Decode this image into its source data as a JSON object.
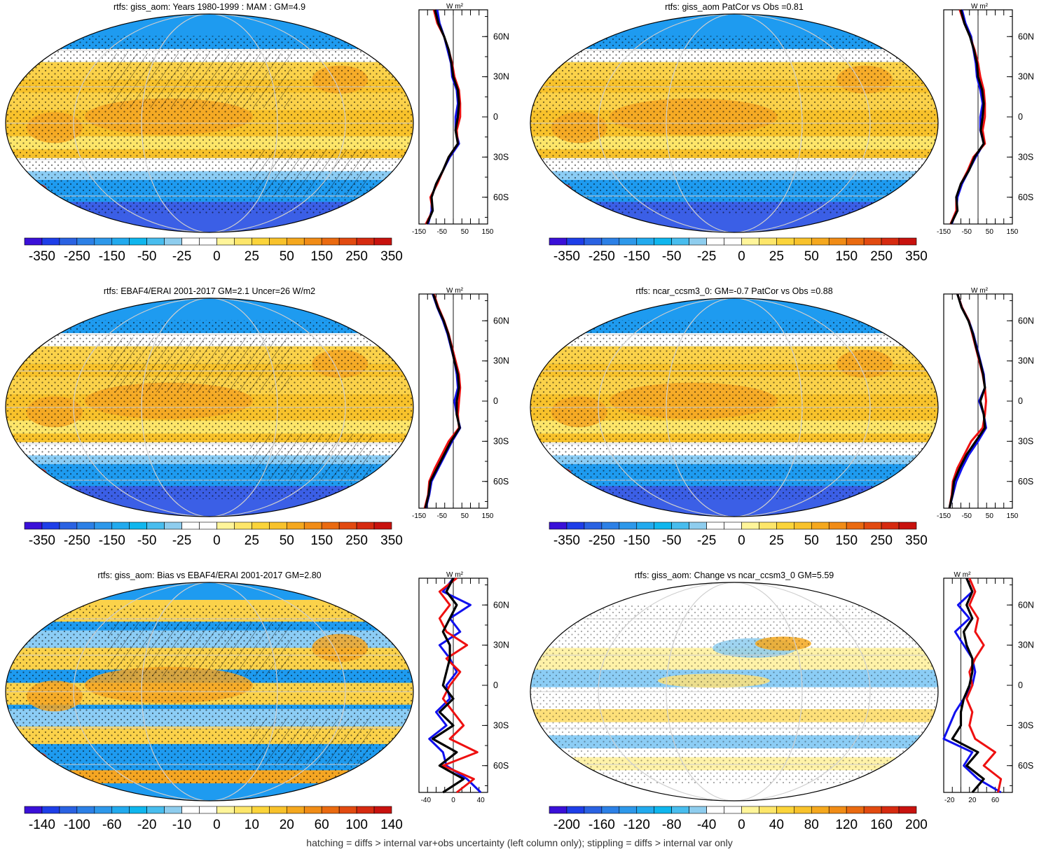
{
  "colors": {
    "bg": "#ffffff",
    "ocean_blue": "#1e9bf0",
    "deep_blue": "#3b5fe6",
    "light_blue": "#8ccdf5",
    "warm_yellow": "#fbd24a",
    "orange": "#f5a623",
    "red": "#e03020",
    "line_blue": "#1010ee",
    "line_red": "#ee1010",
    "line_black": "#000000"
  },
  "colorbar_palette": [
    "#3a10d8",
    "#1e3ee8",
    "#2a62e2",
    "#2c80e6",
    "#2d98ea",
    "#22aaee",
    "#0fb6ee",
    "#48bdee",
    "#8ecdee",
    "#ffffff",
    "#ffffff",
    "#fff59a",
    "#fde66a",
    "#fbd43a",
    "#f8c22b",
    "#f5a81e",
    "#f18c16",
    "#ea6a10",
    "#e24a10",
    "#d62a10",
    "#c8120e"
  ],
  "footer_text": "hatching = diffs > internal var+obs uncertainty (left column only); stippling = diffs > internal var only",
  "chart_data": [
    {
      "type": "heatmap",
      "title": "rtfs: giss_aom: Years 1980-1999 : MAM : GM=4.9",
      "colorbar_ticks": [
        "-350",
        "-250",
        "-150",
        "-50",
        "-25",
        "0",
        "25",
        "50",
        "150",
        "250",
        "350"
      ],
      "zonal_profile": {
        "unit": "W m²",
        "x_ticks": [
          "-150",
          "-50",
          "50",
          "150"
        ],
        "xlim": [
          -150,
          150
        ],
        "y_ticks": [
          "60N",
          "30N",
          "0",
          "30S",
          "60S"
        ],
        "lat": [
          80,
          70,
          60,
          50,
          40,
          30,
          20,
          10,
          0,
          -10,
          -20,
          -30,
          -40,
          -50,
          -60,
          -70,
          -80
        ],
        "series": [
          {
            "color": "blue",
            "values": [
              -70,
              -60,
              -40,
              -25,
              -10,
              -5,
              15,
              20,
              10,
              10,
              25,
              -15,
              -45,
              -75,
              -95,
              -95,
              -110
            ]
          },
          {
            "color": "red",
            "values": [
              -85,
              -70,
              -40,
              -20,
              -5,
              5,
              25,
              30,
              30,
              15,
              20,
              -20,
              -45,
              -70,
              -100,
              -90,
              -120
            ]
          },
          {
            "color": "black",
            "values": [
              -80,
              -65,
              -40,
              -20,
              -8,
              0,
              20,
              25,
              20,
              10,
              20,
              -20,
              -45,
              -75,
              -95,
              -90,
              -115
            ]
          }
        ]
      }
    },
    {
      "type": "heatmap",
      "title": "rtfs: giss_aom PatCor vs Obs =0.81",
      "colorbar_ticks": [
        "-350",
        "-250",
        "-150",
        "-50",
        "-25",
        "0",
        "25",
        "50",
        "150",
        "250",
        "350"
      ],
      "zonal_profile": {
        "unit": "W m²",
        "x_ticks": [
          "-150",
          "-50",
          "50",
          "150"
        ],
        "xlim": [
          -150,
          150
        ],
        "y_ticks": [
          "60N",
          "30N",
          "0",
          "30S",
          "60S"
        ],
        "lat": [
          80,
          70,
          60,
          50,
          40,
          30,
          20,
          10,
          0,
          -10,
          -20,
          -30,
          -40,
          -50,
          -60,
          -70,
          -80
        ],
        "series": [
          {
            "color": "blue",
            "values": [
              -70,
              -55,
              -30,
              -20,
              -10,
              -5,
              10,
              20,
              10,
              10,
              25,
              -10,
              -40,
              -70,
              -90,
              -95,
              -115
            ]
          },
          {
            "color": "red",
            "values": [
              -80,
              -60,
              -35,
              -15,
              0,
              10,
              25,
              30,
              30,
              20,
              30,
              -20,
              -45,
              -75,
              -95,
              -95,
              -120
            ]
          },
          {
            "color": "black",
            "values": [
              -75,
              -60,
              -35,
              -18,
              -5,
              0,
              18,
              25,
              20,
              12,
              25,
              -15,
              -40,
              -75,
              -95,
              -90,
              -118
            ]
          }
        ]
      }
    },
    {
      "type": "heatmap",
      "title": "rtfs: EBAF4/ERAI 2001-2017 GM=2.1 Uncer=26 W/m2",
      "colorbar_ticks": [
        "-350",
        "-250",
        "-150",
        "-50",
        "-25",
        "0",
        "25",
        "50",
        "150",
        "250",
        "350"
      ],
      "zonal_profile": {
        "unit": "W m²",
        "x_ticks": [
          "-150",
          "-50",
          "50",
          "150"
        ],
        "xlim": [
          -150,
          150
        ],
        "y_ticks": [
          "60N",
          "30N",
          "0",
          "30S",
          "60S"
        ],
        "lat": [
          80,
          70,
          60,
          50,
          40,
          30,
          20,
          10,
          0,
          -10,
          -20,
          -30,
          -40,
          -50,
          -60,
          -70,
          -80
        ],
        "series": [
          {
            "color": "blue",
            "values": [
              -90,
              -70,
              -45,
              -25,
              -10,
              5,
              15,
              20,
              5,
              15,
              30,
              -5,
              -35,
              -65,
              -95,
              -105,
              -120
            ]
          },
          {
            "color": "red",
            "values": [
              -85,
              -65,
              -40,
              -20,
              -5,
              10,
              25,
              30,
              25,
              20,
              25,
              -20,
              -50,
              -80,
              -105,
              -110,
              -125
            ]
          },
          {
            "color": "black",
            "values": [
              -88,
              -68,
              -42,
              -22,
              -8,
              5,
              20,
              25,
              15,
              15,
              28,
              -10,
              -40,
              -70,
              -100,
              -108,
              -122
            ]
          }
        ]
      }
    },
    {
      "type": "heatmap",
      "title": "rtfs: ncar_ccsm3_0: GM=-0.7 PatCor vs Obs =0.88",
      "colorbar_ticks": [
        "-350",
        "-250",
        "-150",
        "-50",
        "-25",
        "0",
        "25",
        "50",
        "150",
        "250",
        "350"
      ],
      "zonal_profile": {
        "unit": "W m²",
        "x_ticks": [
          "-150",
          "-50",
          "50",
          "150"
        ],
        "xlim": [
          -150,
          150
        ],
        "y_ticks": [
          "60N",
          "30N",
          "0",
          "30S",
          "60S"
        ],
        "lat": [
          80,
          70,
          60,
          50,
          40,
          30,
          20,
          10,
          0,
          -10,
          -20,
          -30,
          -40,
          -50,
          -60,
          -70,
          -80
        ],
        "series": [
          {
            "color": "blue",
            "values": [
              -90,
              -70,
              -40,
              -20,
              -5,
              10,
              25,
              30,
              5,
              25,
              35,
              0,
              -40,
              -70,
              -95,
              -110,
              -125
            ]
          },
          {
            "color": "red",
            "values": [
              -90,
              -70,
              -40,
              -25,
              -10,
              5,
              20,
              30,
              35,
              30,
              20,
              -30,
              -60,
              -90,
              -110,
              -115,
              -125
            ]
          },
          {
            "color": "black",
            "values": [
              -90,
              -72,
              -42,
              -22,
              -8,
              8,
              22,
              30,
              10,
              25,
              30,
              -10,
              -50,
              -80,
              -105,
              -112,
              -125
            ]
          }
        ]
      }
    },
    {
      "type": "heatmap",
      "title": "rtfs: giss_aom: Bias vs EBAF4/ERAI 2001-2017 GM=2.80",
      "colorbar_ticks": [
        "-140",
        "-100",
        "-60",
        "-20",
        "-10",
        "0",
        "10",
        "20",
        "60",
        "100",
        "140"
      ],
      "zonal_profile": {
        "unit": "W m²",
        "x_ticks": [
          "-40",
          "0",
          "40"
        ],
        "xlim": [
          -50,
          50
        ],
        "y_ticks": [
          "60N",
          "30N",
          "0",
          "30S",
          "60S"
        ],
        "lat": [
          80,
          70,
          60,
          50,
          40,
          30,
          20,
          10,
          0,
          -10,
          -20,
          -30,
          -40,
          -50,
          -60,
          -70,
          -80
        ],
        "series": [
          {
            "color": "blue",
            "values": [
              0,
              -15,
              25,
              -5,
              10,
              -20,
              -5,
              5,
              -10,
              -5,
              -25,
              -10,
              -35,
              -15,
              -10,
              20,
              40
            ]
          },
          {
            "color": "red",
            "values": [
              5,
              -20,
              -5,
              -20,
              -10,
              20,
              -10,
              10,
              -5,
              -15,
              0,
              15,
              -5,
              35,
              -15,
              30,
              5
            ]
          },
          {
            "color": "black",
            "values": [
              0,
              -10,
              5,
              -5,
              -15,
              -5,
              -5,
              -10,
              -15,
              0,
              -20,
              0,
              -30,
              5,
              -20,
              15,
              -15
            ]
          }
        ]
      }
    },
    {
      "type": "heatmap",
      "title": "rtfs: giss_aom: Change vs ncar_ccsm3_0 GM=5.59",
      "colorbar_ticks": [
        "-200",
        "-160",
        "-120",
        "-80",
        "-40",
        "0",
        "40",
        "80",
        "120",
        "160",
        "200"
      ],
      "zonal_profile": {
        "unit": "W m²",
        "x_ticks": [
          "-20",
          "20",
          "60"
        ],
        "xlim": [
          -30,
          90
        ],
        "y_ticks": [
          "60N",
          "30N",
          "0",
          "30S",
          "60S"
        ],
        "lat": [
          80,
          70,
          60,
          50,
          40,
          30,
          20,
          10,
          0,
          -10,
          -20,
          -30,
          -40,
          -50,
          -60,
          -70,
          -80
        ],
        "series": [
          {
            "color": "blue",
            "values": [
              10,
              20,
              -5,
              15,
              -10,
              5,
              20,
              25,
              20,
              5,
              -10,
              -20,
              -30,
              20,
              5,
              30,
              70
            ]
          },
          {
            "color": "red",
            "values": [
              15,
              25,
              15,
              30,
              25,
              40,
              25,
              15,
              20,
              10,
              20,
              15,
              25,
              60,
              40,
              70,
              65
            ]
          },
          {
            "color": "black",
            "values": [
              10,
              20,
              10,
              20,
              5,
              10,
              20,
              20,
              15,
              5,
              0,
              0,
              -15,
              30,
              10,
              40,
              20
            ]
          }
        ]
      }
    }
  ]
}
